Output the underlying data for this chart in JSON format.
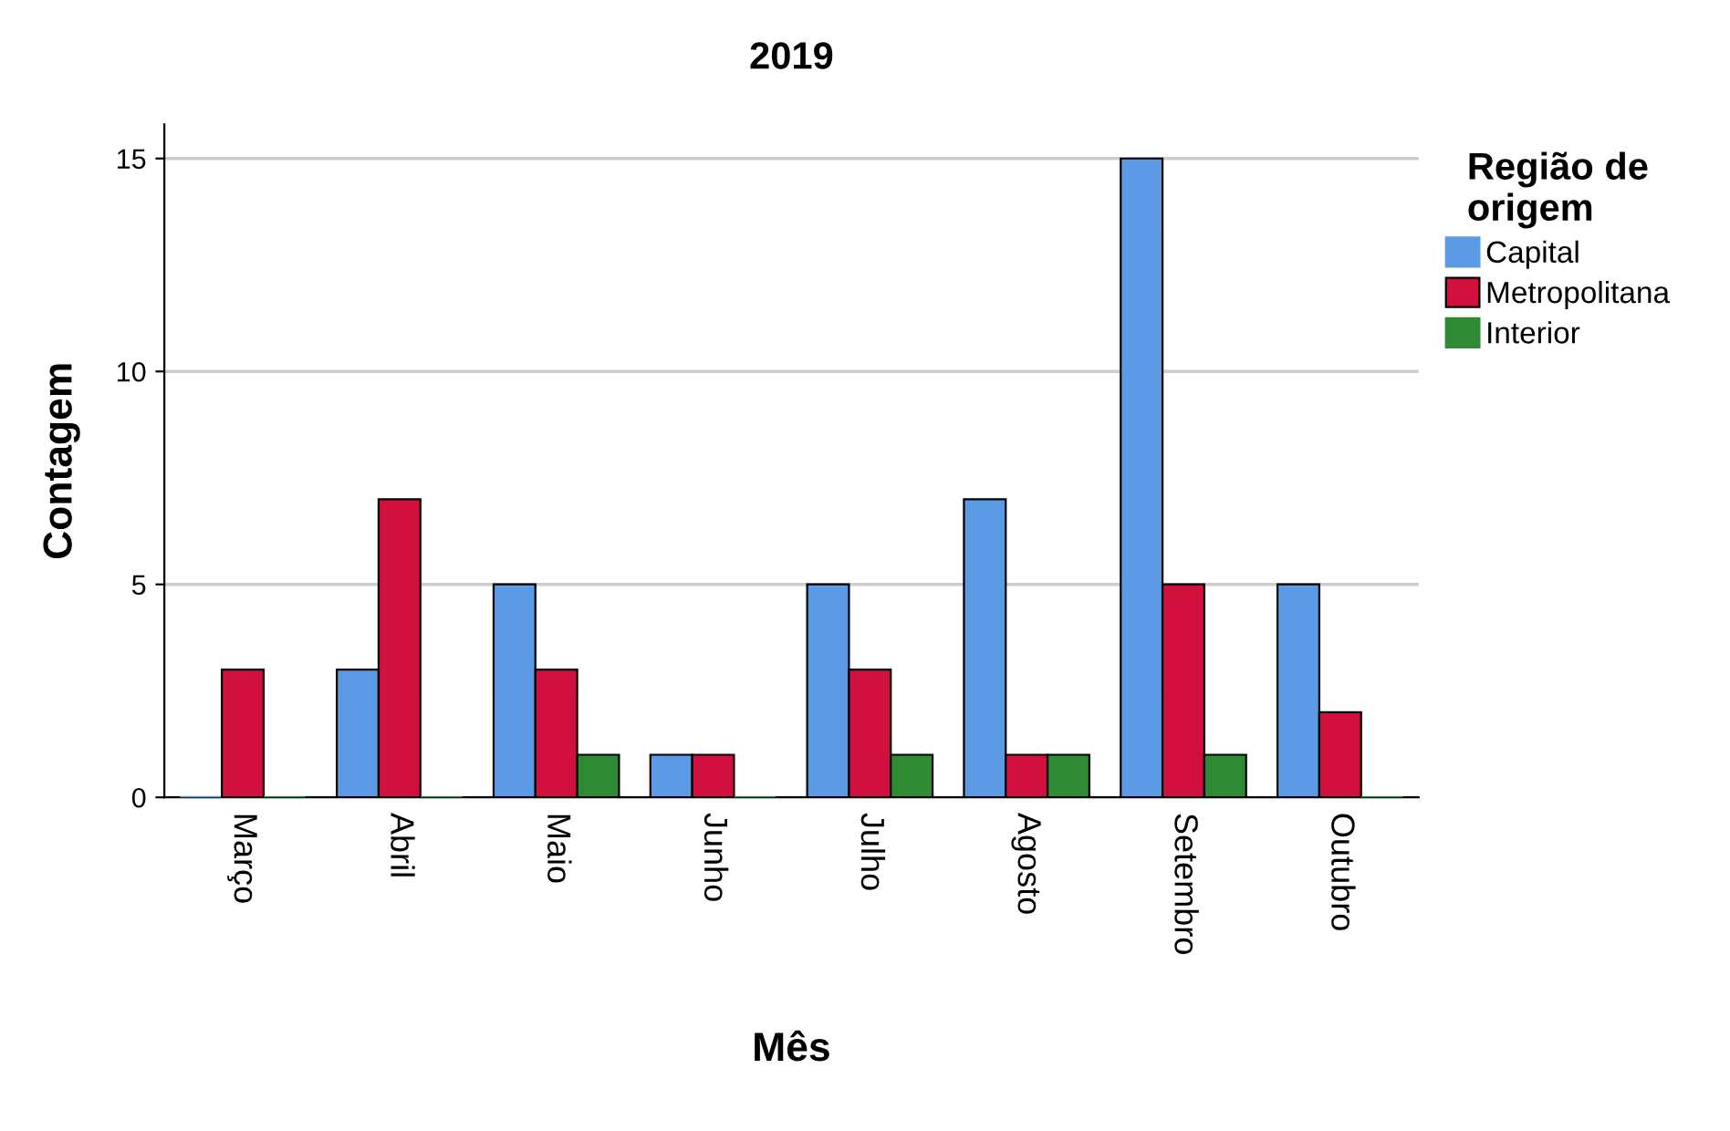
{
  "chart_data": {
    "type": "bar",
    "title": "2019",
    "xlabel": "Mês",
    "ylabel": "Contagem",
    "legend_title": "Região de\norigem",
    "categories": [
      "Março",
      "Abril",
      "Maio",
      "Junho",
      "Julho",
      "Agosto",
      "Setembro",
      "Outubro"
    ],
    "series": [
      {
        "name": "Capital",
        "color": "#5b9be6",
        "values": [
          0,
          3,
          5,
          1,
          5,
          7,
          15,
          5
        ]
      },
      {
        "name": "Metropolitana",
        "color": "#d2103e",
        "values": [
          3,
          7,
          3,
          1,
          3,
          1,
          5,
          2
        ]
      },
      {
        "name": "Interior",
        "color": "#2e8b34",
        "values": [
          0,
          0,
          1,
          0,
          1,
          1,
          1,
          0
        ]
      }
    ],
    "ylim": [
      0,
      15.8
    ],
    "yticks": [
      0,
      5,
      10,
      15
    ],
    "grid": "y",
    "legend": "top right"
  }
}
